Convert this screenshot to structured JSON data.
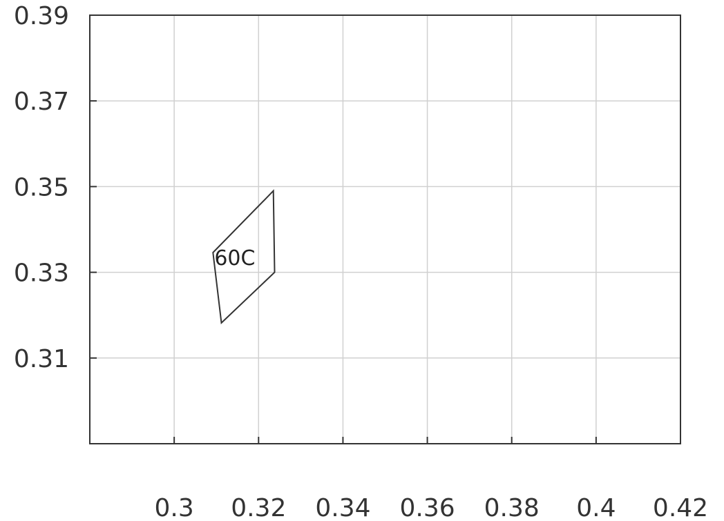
{
  "chart_data": {
    "type": "line",
    "title": "",
    "xlabel": "",
    "ylabel": "",
    "xlim": [
      0.28,
      0.42
    ],
    "ylim": [
      0.29,
      0.39
    ],
    "x_ticks": [
      0.3,
      0.32,
      0.34,
      0.36,
      0.38,
      0.4,
      0.42
    ],
    "x_tick_labels": [
      "0.3",
      "0.32",
      "0.34",
      "0.36",
      "0.38",
      "0.4",
      "0.42"
    ],
    "y_ticks": [
      0.31,
      0.33,
      0.35,
      0.37,
      0.39
    ],
    "y_tick_labels": [
      "0.31",
      "0.33",
      "0.35",
      "0.37",
      "0.39"
    ],
    "grid": true,
    "series": [
      {
        "label": "60C",
        "closed": true,
        "points": [
          {
            "x": 0.3092,
            "y": 0.3346
          },
          {
            "x": 0.3235,
            "y": 0.349
          },
          {
            "x": 0.3238,
            "y": 0.33
          },
          {
            "x": 0.3112,
            "y": 0.3182
          }
        ]
      }
    ],
    "annotations": [
      {
        "text": "60C",
        "x": 0.3092,
        "y": 0.3335
      }
    ]
  },
  "colors": {
    "background": "#ffffff",
    "grid": "#d0d0d0",
    "axis": "#333333",
    "line": "#333333"
  }
}
